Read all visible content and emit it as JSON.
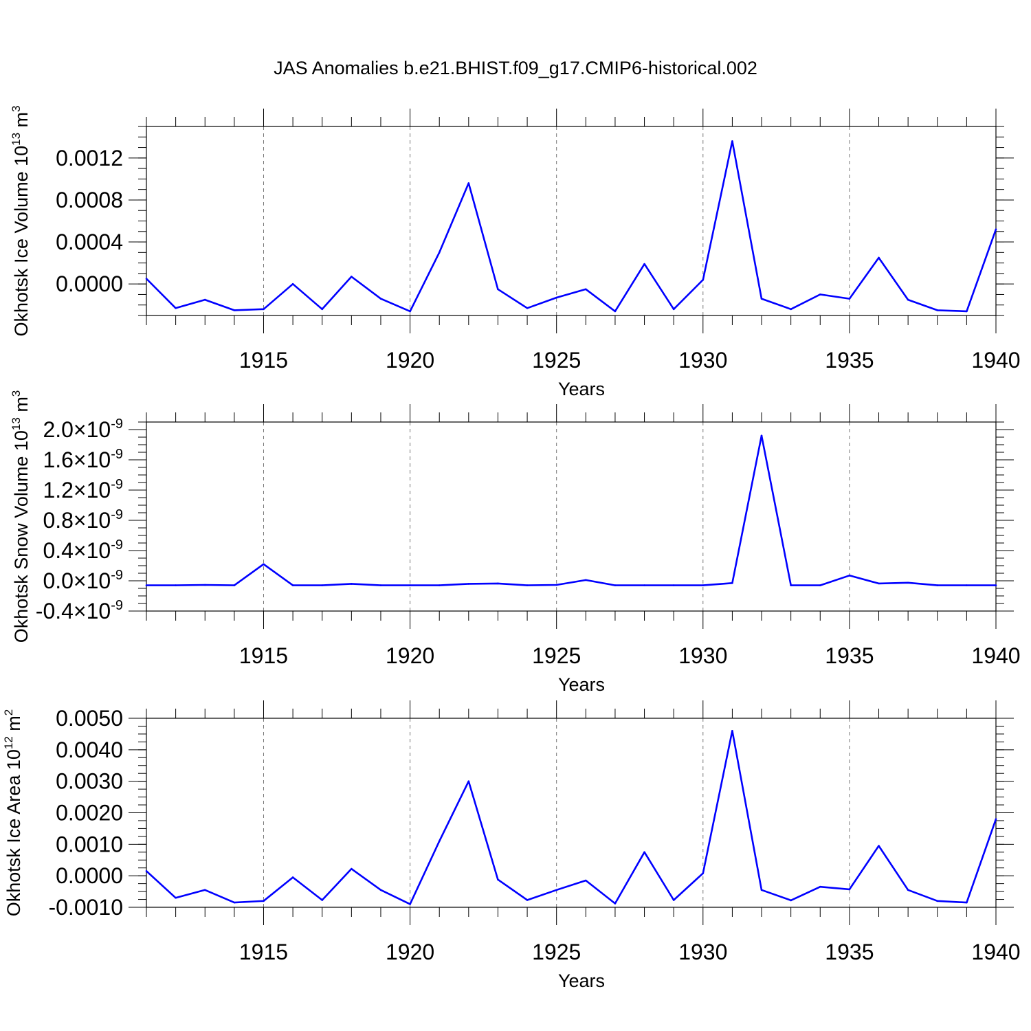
{
  "title": "JAS Anomalies b.e21.BHIST.f09_g17.CMIP6-historical.002",
  "chart_data": [
    {
      "type": "line",
      "ylabel": "Okhotsk Ice Volume 10",
      "ylabel_exp": "13",
      "ylabel_unit": "m",
      "ylabel_unit_exp": "3",
      "xlabel": "Years",
      "xlim": [
        1911,
        1940
      ],
      "ylim": [
        -0.0003,
        0.0015
      ],
      "xticks": [
        1915,
        1920,
        1925,
        1930,
        1935,
        1940
      ],
      "yticks": [
        0.0,
        0.0004,
        0.0008,
        0.0012
      ],
      "ytick_labels": [
        "0.0000",
        "0.0004",
        "0.0008",
        "0.0012"
      ],
      "color": "#0000ff",
      "x": [
        1911,
        1912,
        1913,
        1914,
        1915,
        1916,
        1917,
        1918,
        1919,
        1920,
        1921,
        1922,
        1923,
        1924,
        1925,
        1926,
        1927,
        1928,
        1929,
        1930,
        1931,
        1932,
        1933,
        1934,
        1935,
        1936,
        1937,
        1938,
        1939,
        1940
      ],
      "y": [
        5e-05,
        -0.00023,
        -0.00015,
        -0.00025,
        -0.00024,
        0.0,
        -0.00024,
        7e-05,
        -0.00014,
        -0.00026,
        0.0003,
        0.00096,
        -5e-05,
        -0.00023,
        -0.00013,
        -5e-05,
        -0.00026,
        0.00019,
        -0.00024,
        4e-05,
        0.00136,
        -0.00014,
        -0.00024,
        -0.0001,
        -0.00014,
        0.00025,
        -0.00015,
        -0.00025,
        -0.00026,
        0.00052
      ]
    },
    {
      "type": "line",
      "ylabel": "Okhotsk Snow Volume 10",
      "ylabel_exp": "13",
      "ylabel_unit": "m",
      "ylabel_unit_exp": "3",
      "xlabel": "Years",
      "xlim": [
        1911,
        1940
      ],
      "ylim": [
        -4e-10,
        2.1e-09
      ],
      "xticks": [
        1915,
        1920,
        1925,
        1930,
        1935,
        1940
      ],
      "yticks": [
        -4e-10,
        0.0,
        4e-10,
        8e-10,
        1.2e-09,
        1.6e-09,
        2e-09
      ],
      "ytick_labels": [
        "-0.4",
        "0.0",
        "0.4",
        "0.8",
        "1.2",
        "1.6",
        "2.0"
      ],
      "ytick_suffix": "×10",
      "ytick_exp": "-9",
      "color": "#0000ff",
      "x": [
        1911,
        1912,
        1913,
        1914,
        1915,
        1916,
        1917,
        1918,
        1919,
        1920,
        1921,
        1922,
        1923,
        1924,
        1925,
        1926,
        1927,
        1928,
        1929,
        1930,
        1931,
        1932,
        1933,
        1934,
        1935,
        1936,
        1937,
        1938,
        1939,
        1940
      ],
      "y": [
        -6e-11,
        -6e-11,
        -5.5e-11,
        -6e-11,
        2.2e-10,
        -6e-11,
        -6e-11,
        -4e-11,
        -6e-11,
        -6e-11,
        -6e-11,
        -4e-11,
        -3.5e-11,
        -6e-11,
        -5.5e-11,
        1e-11,
        -6e-11,
        -6e-11,
        -6e-11,
        -6e-11,
        -3e-11,
        1.92e-09,
        -6e-11,
        -6e-11,
        7e-11,
        -3.5e-11,
        -2.5e-11,
        -6e-11,
        -6e-11,
        -6e-11
      ]
    },
    {
      "type": "line",
      "ylabel": "Okhotsk Ice Area 10",
      "ylabel_exp": "12",
      "ylabel_unit": "m",
      "ylabel_unit_exp": "2",
      "xlabel": "Years",
      "xlim": [
        1911,
        1940
      ],
      "ylim": [
        -0.001,
        0.005
      ],
      "xticks": [
        1915,
        1920,
        1925,
        1930,
        1935,
        1940
      ],
      "yticks": [
        -0.001,
        0.0,
        0.001,
        0.002,
        0.003,
        0.004,
        0.005
      ],
      "ytick_labels": [
        "-0.0010",
        "0.0000",
        "0.0010",
        "0.0020",
        "0.0030",
        "0.0040",
        "0.0050"
      ],
      "color": "#0000ff",
      "x": [
        1911,
        1912,
        1913,
        1914,
        1915,
        1916,
        1917,
        1918,
        1919,
        1920,
        1921,
        1922,
        1923,
        1924,
        1925,
        1926,
        1927,
        1928,
        1929,
        1930,
        1931,
        1932,
        1933,
        1934,
        1935,
        1936,
        1937,
        1938,
        1939,
        1940
      ],
      "y": [
        0.00015,
        -0.0007,
        -0.00045,
        -0.00085,
        -0.0008,
        -5e-05,
        -0.00077,
        0.00022,
        -0.00045,
        -0.0009,
        0.0011,
        0.003,
        -0.00012,
        -0.00077,
        -0.00045,
        -0.00015,
        -0.00088,
        0.00075,
        -0.00077,
        8e-05,
        0.0046,
        -0.00045,
        -0.00078,
        -0.00035,
        -0.00043,
        0.00095,
        -0.00045,
        -0.0008,
        -0.00085,
        0.0018
      ]
    }
  ]
}
